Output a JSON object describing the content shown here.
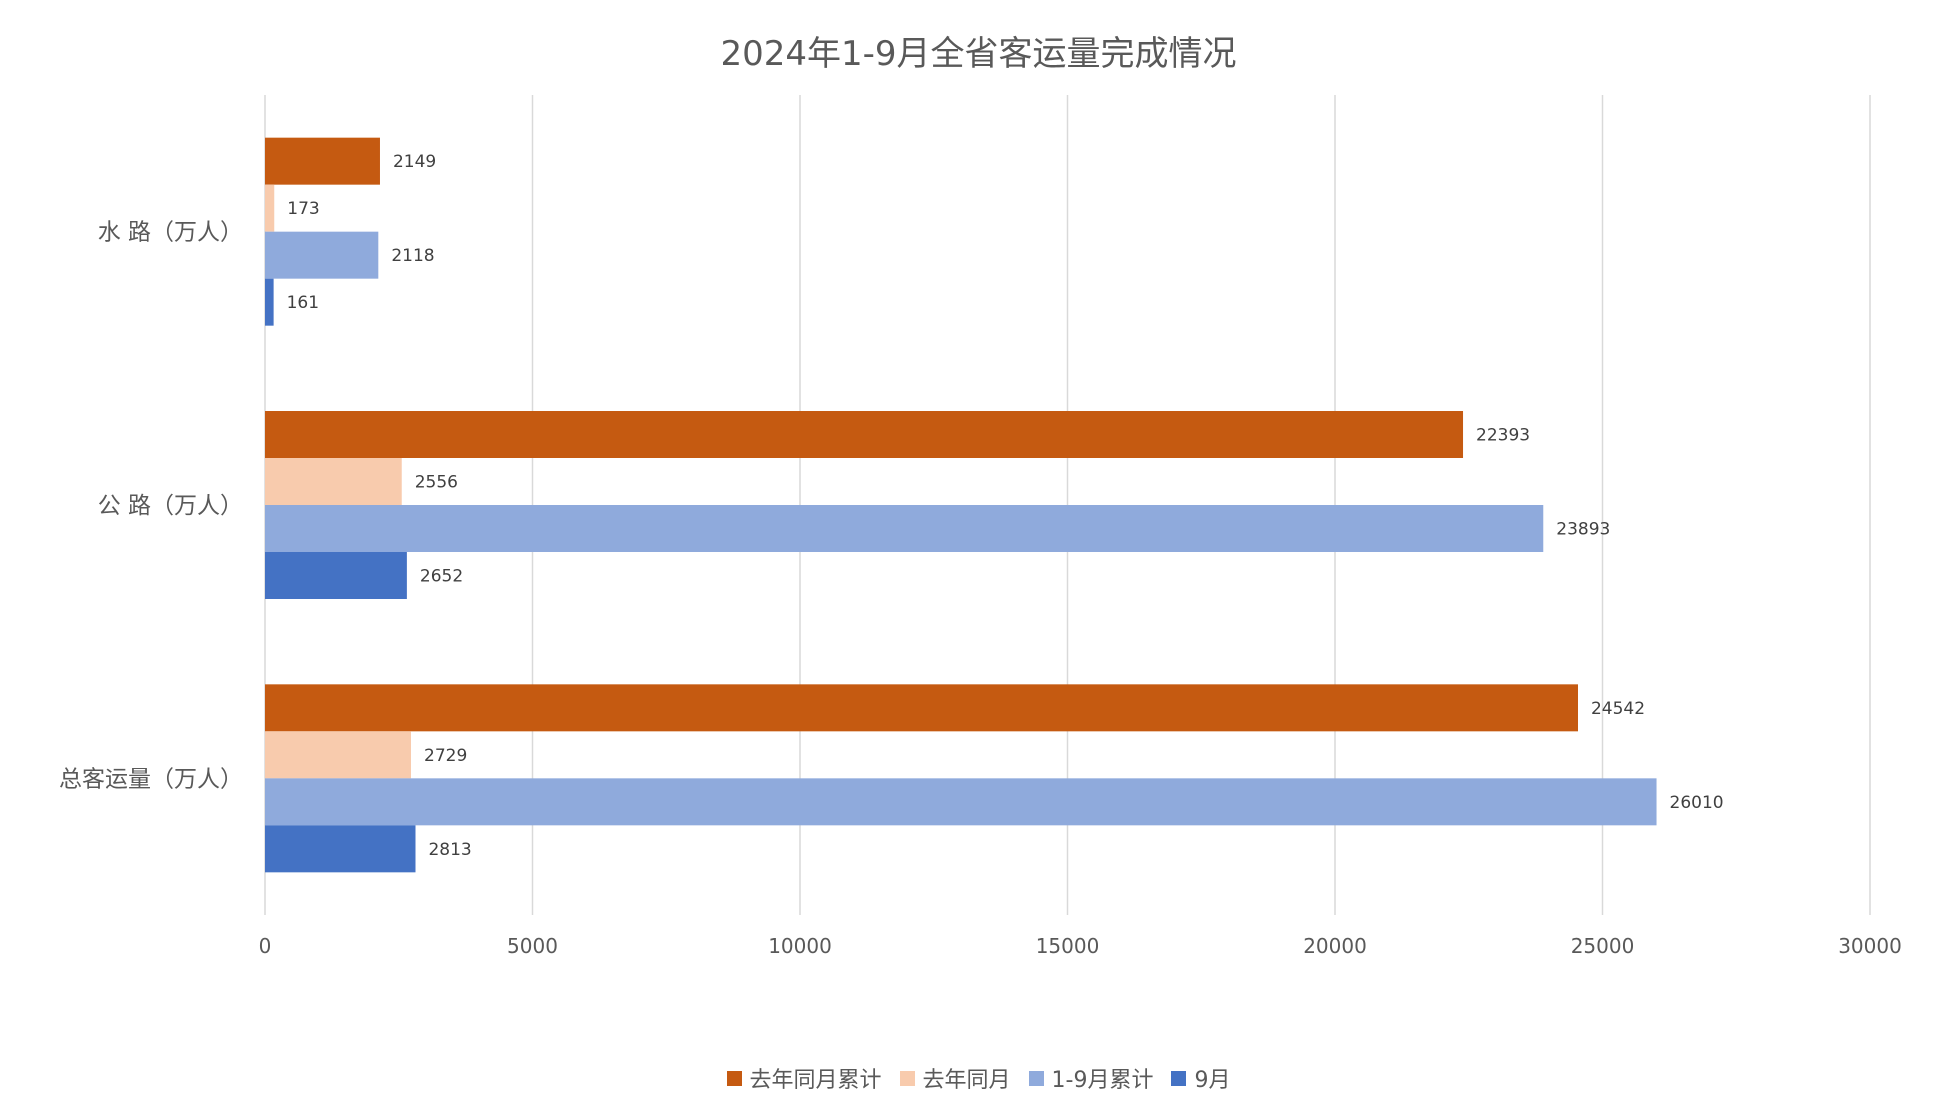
{
  "chart_data": {
    "type": "bar",
    "orientation": "horizontal",
    "title": "2024年1-9月全省客运量完成情况",
    "categories": [
      "水 路（万人）",
      "公 路（万人）",
      "总客运量（万人）"
    ],
    "series": [
      {
        "name": "去年同月累计",
        "color": "#C55A11",
        "values": [
          2149,
          22393,
          24542
        ]
      },
      {
        "name": "去年同月",
        "color": "#F8CBAD",
        "values": [
          173,
          2556,
          2729
        ]
      },
      {
        "name": "1-9月累计",
        "color": "#8FAADC",
        "values": [
          2118,
          23893,
          26010
        ]
      },
      {
        "name": "9月",
        "color": "#4472C4",
        "values": [
          161,
          2652,
          2813
        ]
      }
    ],
    "xlim": [
      0,
      30000
    ],
    "xticks": [
      0,
      5000,
      10000,
      15000,
      20000,
      25000,
      30000
    ],
    "grid": true,
    "legend_position": "bottom",
    "data_labels": true
  }
}
